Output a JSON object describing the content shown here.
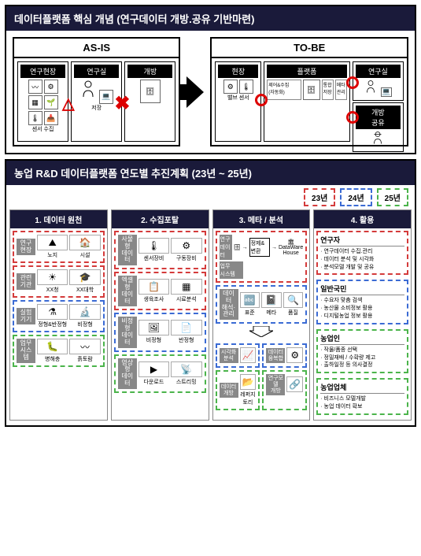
{
  "panel1": {
    "title": "데이터플랫폼 핵심 개념 (연구데이터 개방.공유 기반마련)",
    "asis": {
      "header": "AS-IS",
      "box1": {
        "label": "연구현장",
        "items": [
          "밸브",
          "센서",
          "제어",
          "수집"
        ]
      },
      "box2": {
        "label": "연구실",
        "items": [
          "저장"
        ]
      },
      "box3": {
        "label": "개방"
      }
    },
    "tobe": {
      "header": "TO-BE",
      "box1": {
        "label": "현장",
        "items": [
          "밸브",
          "센서"
        ]
      },
      "box2": {
        "label": "플랫폼",
        "items": [
          "제어&수집(자동화)",
          "통합저장",
          "메타관리"
        ]
      },
      "box3": {
        "label": "연구실"
      },
      "box4": {
        "label": "개방\n공유"
      }
    }
  },
  "panel2": {
    "title": "농업 R&D 데이터플랫폼 연도별 추진계획 (23년 ~ 25년)",
    "legend": [
      {
        "label": "23년",
        "color": "#d43b3b"
      },
      {
        "label": "24년",
        "color": "#3b6bd4"
      },
      {
        "label": "25년",
        "color": "#4bb44b"
      }
    ],
    "columns": [
      {
        "header": "1. 데이터 원천",
        "cells": [
          {
            "side": "연구\n현장",
            "color": "#d43b3b",
            "items": [
              {
                "icon": "⛰",
                "label": "노지"
              },
              {
                "icon": "🏠",
                "label": "시설"
              }
            ]
          },
          {
            "side": "관련\n기관",
            "color": "#d43b3b",
            "items": [
              {
                "icon": "☀",
                "label": "XX청"
              },
              {
                "icon": "🎓",
                "label": "XX대학"
              }
            ]
          },
          {
            "side": "실험\n기기",
            "color": "#3b6bd4",
            "items": [
              {
                "icon": "⚗",
                "label": "정형&반정형"
              },
              {
                "icon": "🔬",
                "label": "비정형"
              }
            ]
          },
          {
            "side": "업무\n시스템",
            "color": "#4bb44b",
            "items": [
              {
                "icon": "🐛",
                "label": "병해충"
              },
              {
                "icon": "〰",
                "label": "흙토람"
              }
            ]
          }
        ]
      },
      {
        "header": "2. 수집포탈",
        "cells": [
          {
            "side": "사물형\n데이터",
            "color": "#d43b3b",
            "items": [
              {
                "icon": "🌡",
                "label": "센서장비"
              },
              {
                "icon": "⚙",
                "label": "구동장비"
              }
            ]
          },
          {
            "side": "엑셀형\n데이터",
            "color": "#d43b3b",
            "items": [
              {
                "icon": "📋",
                "label": "생육조사"
              },
              {
                "icon": "▦",
                "label": "시료분석"
              }
            ]
          },
          {
            "side": "비정형\n데이터",
            "color": "#3b6bd4",
            "items": [
              {
                "icon": "🖼",
                "label": "비정형"
              },
              {
                "icon": "📄",
                "label": "반정형"
              }
            ]
          },
          {
            "side": "영상형\n데이터",
            "color": "#4bb44b",
            "items": [
              {
                "icon": "▶",
                "label": "다운로드"
              },
              {
                "icon": "📡",
                "label": "스트리밍"
              }
            ]
          }
        ]
      },
      {
        "header": "3. 메타 / 분석",
        "complex": true,
        "top": {
          "color": "#d43b3b",
          "items": [
            {
              "label": "연구\n데이터",
              "icon": "🗄"
            },
            {
              "label": "정제&변환"
            },
            {
              "label": "DataWare\nHouse",
              "icon": "🏛"
            }
          ],
          "sublabel": "업무\n시스템"
        },
        "mid": {
          "color": "#3b6bd4",
          "side": "데이터\n해석·관리",
          "items": [
            {
              "icon": "🔤",
              "label": "표준"
            },
            {
              "icon": "📓",
              "label": "메타"
            },
            {
              "icon": "🔍",
              "label": "품질"
            }
          ]
        },
        "bot": [
          {
            "color": "#3b6bd4",
            "side": "시각화\n분석",
            "items": [
              {
                "icon": "📈",
                "label": ""
              }
            ],
            "side2": "데이터\n융복합",
            "items2": [
              {
                "icon": "⚙",
                "label": ""
              }
            ]
          },
          {
            "color": "#4bb44b",
            "side": "데이터\n개방",
            "items": [
              {
                "icon": "📂",
                "label": "레퍼지토리"
              }
            ],
            "side2": "연구모델\n개방",
            "items2": [
              {
                "icon": "🔗",
                "label": ""
              }
            ]
          }
        ]
      },
      {
        "header": "4. 활용",
        "usage": [
          {
            "title": "연구자",
            "color": "#d43b3b",
            "items": [
              "연구데이터 수집.관리",
              "데이터 분석 및 시각화",
              "분석모델 개발 및 공유"
            ]
          },
          {
            "title": "일반국민",
            "color": "#3b6bd4",
            "items": [
              "수요자 맞춤 검색",
              "농산물 소비정보 활용",
              "디지털농업 정보 활용"
            ]
          },
          {
            "title": "농업인",
            "color": "#4bb44b",
            "items": [
              "작물/품종 선택",
              "정밀재배 / 수확량 제고",
              "출하일정 등 의사결정"
            ]
          },
          {
            "title": "농업업체",
            "color": "#4bb44b",
            "items": [
              "비즈니스 모델개발",
              "농업 데이터 확보"
            ]
          }
        ]
      }
    ]
  }
}
